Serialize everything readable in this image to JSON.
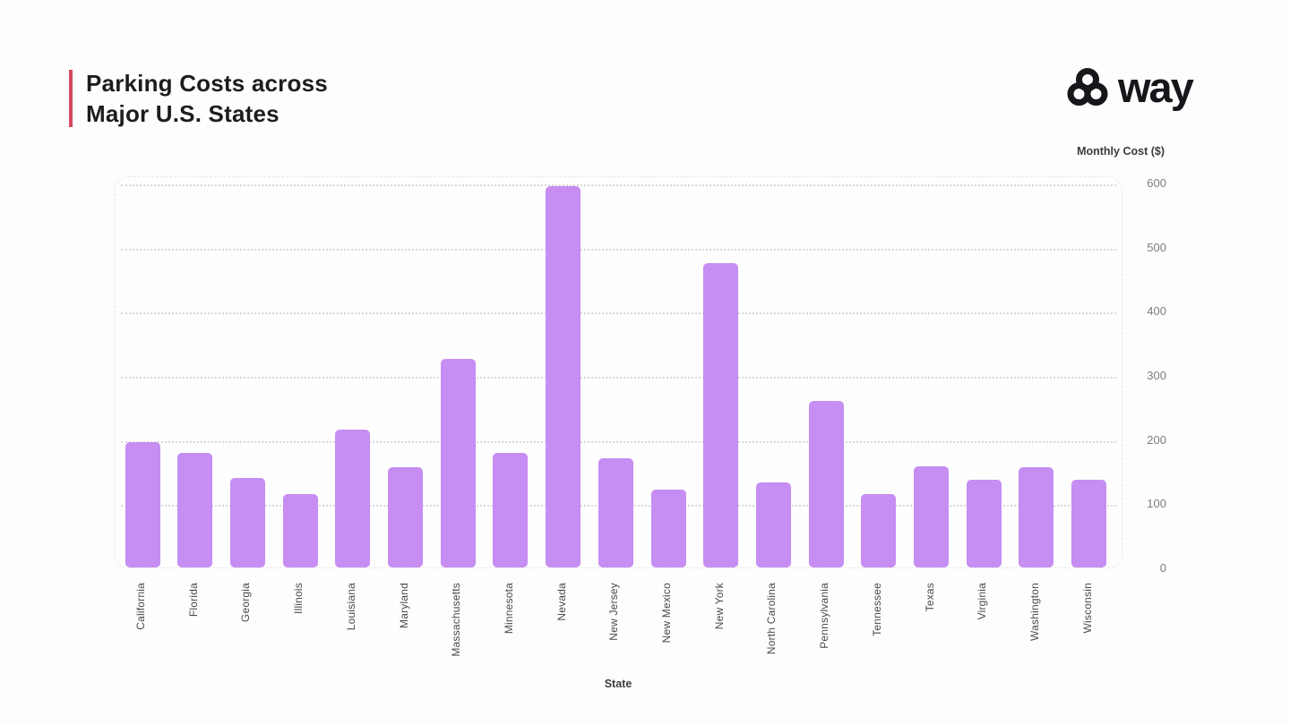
{
  "header": {
    "title_line1": "Parking Costs across",
    "title_line2": "Major U.S. States",
    "logo_text": "way"
  },
  "colors": {
    "accent": "#d34a5f",
    "bar": "#c68df2",
    "grid": "#d8d8d8",
    "panel_border": "#e7e7e7",
    "tick_text": "#7d7d7d",
    "xlabel_text": "#4a4a4a",
    "title_text": "#1d1d1f",
    "logo_text": "#17171b"
  },
  "chart_data": {
    "type": "bar",
    "title": "Parking Costs across Major U.S. States",
    "xlabel": "State",
    "ylabel": "Monthly Cost ($)",
    "ylim": [
      0,
      600
    ],
    "yticks": [
      0,
      100,
      200,
      300,
      400,
      500,
      600
    ],
    "grid": "horizontal-dotted",
    "legend": "none",
    "y_axis_side": "right",
    "categories": [
      "California",
      "Florida",
      "Georgia",
      "Illinois",
      "Louisiana",
      "Maryland",
      "Massachusetts",
      "Minnesota",
      "Nevada",
      "New Jersey",
      "New Mexico",
      "New York",
      "North Carolina",
      "Pennsylvania",
      "Tennessee",
      "Texas",
      "Virginia",
      "Washington",
      "Wisconsin"
    ],
    "values": [
      195,
      178,
      140,
      115,
      215,
      156,
      325,
      178,
      595,
      170,
      122,
      475,
      133,
      260,
      114,
      158,
      137,
      157,
      137
    ]
  }
}
